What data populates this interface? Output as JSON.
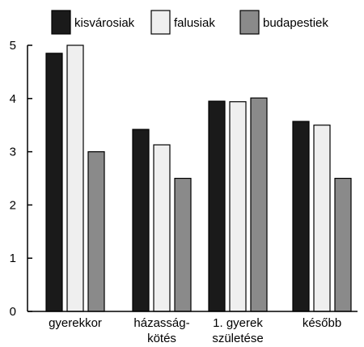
{
  "chart_data": {
    "type": "bar",
    "categories": [
      [
        "gyerekkor"
      ],
      [
        "házasság-",
        "kötés"
      ],
      [
        "1. gyerek",
        "születése"
      ],
      [
        "később"
      ]
    ],
    "series": [
      {
        "name": "kisvárosiak",
        "color": "#1a1a1a",
        "values": [
          4.85,
          3.42,
          3.95,
          3.57
        ]
      },
      {
        "name": "falusiak",
        "color": "#efefef",
        "values": [
          5.0,
          3.13,
          3.94,
          3.5
        ]
      },
      {
        "name": "budapestiek",
        "color": "#8a8a8a",
        "values": [
          3.0,
          2.5,
          4.01,
          2.5
        ]
      }
    ],
    "ylim": [
      0,
      5
    ],
    "yticks": [
      "0",
      "1",
      "2",
      "3",
      "4",
      "5"
    ],
    "grid": false,
    "legend_position": "top"
  }
}
